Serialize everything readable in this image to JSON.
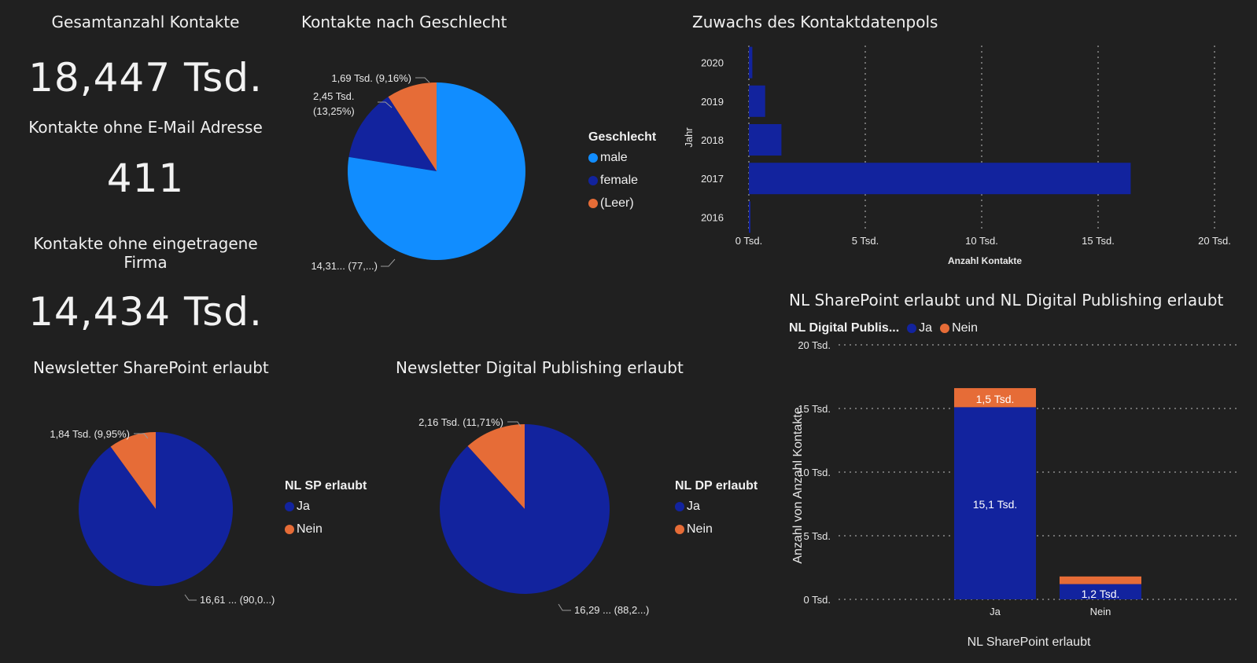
{
  "colors": {
    "male": "#118dff",
    "female": "#12239e",
    "leer": "#e66c37",
    "ja": "#12239e",
    "nein": "#e66c37"
  },
  "kpis": {
    "total": {
      "title": "Gesamtanzahl Kontakte",
      "value": "18,447 Tsd."
    },
    "no_email": {
      "title": "Kontakte ohne E-Mail Adresse",
      "value": "411"
    },
    "no_company": {
      "title_line1": "Kontakte ohne eingetragene",
      "title_line2": "Firma",
      "value": "14,434 Tsd."
    }
  },
  "gender": {
    "title": "Kontakte nach Geschlecht",
    "legend_title": "Geschlecht",
    "legend": [
      "male",
      "female",
      "(Leer)"
    ],
    "labels": {
      "male": "14,31... (77,...)",
      "female_1": "2,45 Tsd.",
      "female_2": "(13,25%)",
      "leer": "1,69 Tsd. (9,16%)"
    }
  },
  "growth": {
    "title": "Zuwachs des Kontaktdatenpols",
    "ylabel": "Jahr",
    "xlabel": "Anzahl Kontakte",
    "years": [
      "2020",
      "2019",
      "2018",
      "2017",
      "2016"
    ],
    "ticks": [
      "0 Tsd.",
      "5 Tsd.",
      "10 Tsd.",
      "15 Tsd.",
      "20 Tsd."
    ]
  },
  "nl_sp": {
    "title": "Newsletter SharePoint erlaubt",
    "legend_title": "NL SP erlaubt",
    "legend": [
      "Ja",
      "Nein"
    ],
    "labels": {
      "nein": "1,84 Tsd. (9,95%)",
      "ja": "16,61 ... (90,0...)"
    }
  },
  "nl_dp": {
    "title": "Newsletter Digital Publishing erlaubt",
    "legend_title": "NL DP erlaubt",
    "legend": [
      "Ja",
      "Nein"
    ],
    "labels": {
      "nein": "2,16 Tsd. (11,71%)",
      "ja": "16,29 ... (88,2...)"
    }
  },
  "stacked": {
    "title": "NL SharePoint erlaubt und NL Digital Publishing erlaubt",
    "legend_title": "NL Digital Publis...",
    "legend": [
      "Ja",
      "Nein"
    ],
    "ylabel": "Anzahl von Anzahl Kontakte",
    "xlabel": "NL SharePoint erlaubt",
    "yticks": [
      "20 Tsd.",
      "15 Tsd.",
      "10 Tsd.",
      "5 Tsd.",
      "0 Tsd."
    ],
    "categories": [
      "Ja",
      "Nein"
    ],
    "data_labels": {
      "ja_ja": "15,1 Tsd.",
      "ja_nein": "1,5 Tsd.",
      "nein_ja": "1,2 Tsd."
    }
  },
  "chart_data": [
    {
      "type": "pie",
      "title": "Kontakte nach Geschlecht",
      "legend_title": "Geschlecht",
      "categories": [
        "male",
        "female",
        "(Leer)"
      ],
      "values": [
        14.31,
        2.45,
        1.69
      ],
      "percent": [
        77.6,
        13.25,
        9.16
      ],
      "unit": "Tsd."
    },
    {
      "type": "bar",
      "orientation": "horizontal",
      "title": "Zuwachs des Kontaktdatenpols",
      "categories": [
        "2016",
        "2017",
        "2018",
        "2019",
        "2020"
      ],
      "values": [
        0.05,
        16.4,
        1.4,
        0.7,
        0.15
      ],
      "xlabel": "Anzahl Kontakte",
      "ylabel": "Jahr",
      "xlim": [
        0,
        20
      ],
      "unit": "Tsd."
    },
    {
      "type": "pie",
      "title": "Newsletter SharePoint erlaubt",
      "legend_title": "NL SP erlaubt",
      "categories": [
        "Ja",
        "Nein"
      ],
      "values": [
        16.61,
        1.84
      ],
      "percent": [
        90.05,
        9.95
      ],
      "unit": "Tsd."
    },
    {
      "type": "pie",
      "title": "Newsletter Digital Publishing erlaubt",
      "legend_title": "NL DP erlaubt",
      "categories": [
        "Ja",
        "Nein"
      ],
      "values": [
        16.29,
        2.16
      ],
      "percent": [
        88.29,
        11.71
      ],
      "unit": "Tsd."
    },
    {
      "type": "bar",
      "stacked": true,
      "title": "NL SharePoint erlaubt und NL Digital Publishing erlaubt",
      "categories": [
        "Ja",
        "Nein"
      ],
      "series": [
        {
          "name": "Ja",
          "values": [
            15.1,
            1.2
          ]
        },
        {
          "name": "Nein",
          "values": [
            1.5,
            0.6
          ]
        }
      ],
      "xlabel": "NL SharePoint erlaubt",
      "ylabel": "Anzahl von Anzahl Kontakte",
      "ylim": [
        0,
        20
      ],
      "unit": "Tsd."
    }
  ]
}
